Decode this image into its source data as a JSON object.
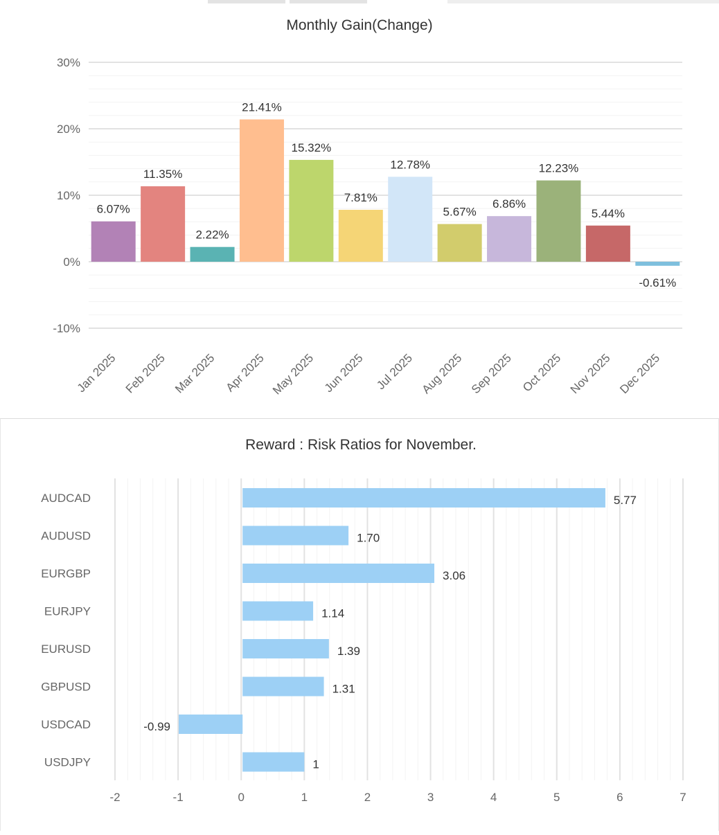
{
  "monthly_chart": {
    "title": "Monthly Gain(Change)",
    "chart_data": {
      "type": "bar",
      "title": "Monthly Gain(Change)",
      "xlabel": "",
      "ylabel": "",
      "categories": [
        "Jan 2025",
        "Feb 2025",
        "Mar 2025",
        "Apr 2025",
        "May 2025",
        "Jun 2025",
        "Jul 2025",
        "Aug 2025",
        "Sep 2025",
        "Oct 2025",
        "Nov 2025",
        "Dec 2025"
      ],
      "values": [
        6.07,
        11.35,
        2.22,
        21.41,
        15.32,
        7.81,
        12.78,
        5.67,
        6.86,
        12.23,
        5.44,
        -0.61
      ],
      "value_labels": [
        "6.07%",
        "11.35%",
        "2.22%",
        "21.41%",
        "15.32%",
        "7.81%",
        "12.78%",
        "5.67%",
        "6.86%",
        "12.23%",
        "5.44%",
        "-0.61%"
      ],
      "colors": [
        "#b282b6",
        "#e3847f",
        "#5ab3b3",
        "#ffbe8f",
        "#bdd66c",
        "#f5d576",
        "#d2e6f8",
        "#d2cc6c",
        "#c7b7db",
        "#9bb27a",
        "#c66868",
        "#7ebfdd"
      ],
      "ylim": [
        -10,
        30
      ],
      "yticks": [
        -10,
        0,
        10,
        20,
        30
      ],
      "ytick_labels": [
        "-10%",
        "0%",
        "10%",
        "20%",
        "30%"
      ],
      "grid": true,
      "legend": "none"
    }
  },
  "ratio_chart": {
    "title": "Reward : Risk Ratios for November.",
    "chart_data": {
      "type": "bar",
      "orientation": "horizontal",
      "title": "Reward : Risk Ratios for November.",
      "xlabel": "",
      "ylabel": "",
      "categories": [
        "AUDCAD",
        "AUDUSD",
        "EURGBP",
        "EURJPY",
        "EURUSD",
        "GBPUSD",
        "USDCAD",
        "USDJPY"
      ],
      "values": [
        5.77,
        1.7,
        3.06,
        1.14,
        1.39,
        1.31,
        -0.99,
        1
      ],
      "value_labels": [
        "5.77",
        "1.70",
        "3.06",
        "1.14",
        "1.39",
        "1.31",
        "-0.99",
        "1"
      ],
      "color": "#9dd0f5",
      "xlim": [
        -2,
        7
      ],
      "xticks": [
        -2,
        -1,
        0,
        1,
        2,
        3,
        4,
        5,
        6,
        7
      ],
      "xtick_labels": [
        "-2",
        "-1",
        "0",
        "1",
        "2",
        "3",
        "4",
        "5",
        "6",
        "7"
      ],
      "grid": true,
      "legend": "none"
    }
  }
}
